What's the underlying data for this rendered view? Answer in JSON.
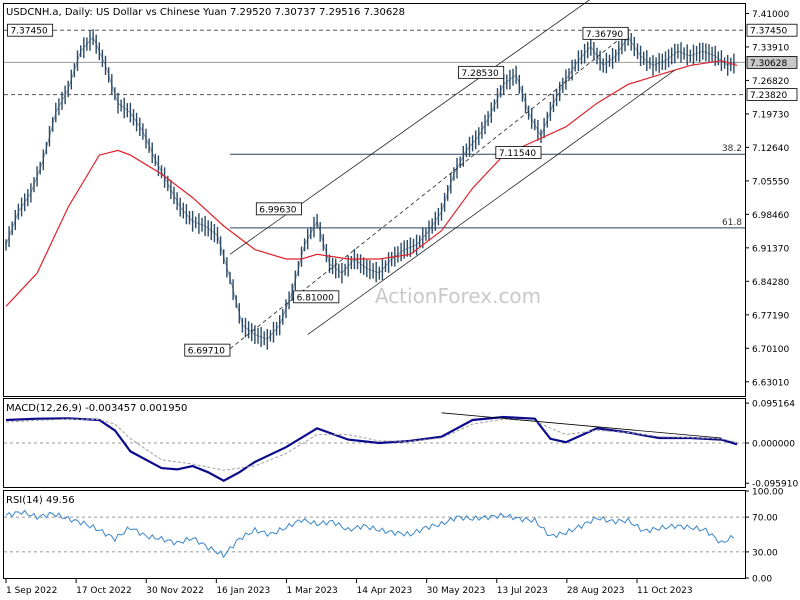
{
  "header": {
    "main_title": "USDCNH.a, Daily:  US Dollar vs Chinese Yuan  7.29520 7.30737 7.29516 7.30628",
    "macd_title": "MACD(12,26,9) -0.003457 0.001950",
    "rsi_title": "RSI(14) 49.56"
  },
  "watermark": "ActionForex.com",
  "colors": {
    "price": "#2b4a66",
    "ma": "#e0202a",
    "channel": "#222222",
    "macd_line": "#0a0a8c",
    "signal_line": "#a0a0a0",
    "rsi": "#3a86c8",
    "current_line": "#9a9a9a",
    "grid_dash": "#555555"
  },
  "chart_data": [
    {
      "type": "line",
      "name": "price-panel",
      "ylim": [
        6.6,
        7.43
      ],
      "y_ticks": [
        "7.41000",
        "7.33910",
        "7.26820",
        "7.19730",
        "7.12640",
        "7.05550",
        "6.98460",
        "6.91370",
        "6.84280",
        "6.77190",
        "6.70100",
        "6.63010"
      ],
      "x_ticks": [
        "1 Sep 2022",
        "17 Oct 2022",
        "30 Nov 2022",
        "16 Jan 2023",
        "1 Mar 2023",
        "14 Apr 2023",
        "30 May 2023",
        "13 Jul 2023",
        "28 Aug 2023",
        "11 Oct 2023"
      ],
      "price_levels": [
        {
          "label": "7.37450",
          "value": 7.3745,
          "style": "dashed"
        },
        {
          "label": "7.30628",
          "value": 7.30628,
          "style": "current"
        },
        {
          "label": "7.23820",
          "value": 7.2382,
          "style": "dashed"
        }
      ],
      "fib_levels": [
        {
          "label": "38.2",
          "value": 7.112
        },
        {
          "label": "61.8",
          "value": 6.956
        }
      ],
      "annotations": [
        {
          "label": "7.37450",
          "x": 15,
          "y": 7.3745
        },
        {
          "label": "6.69710",
          "x": 72,
          "y": 6.6971
        },
        {
          "label": "6.99630",
          "x": 95,
          "y": 6.9963
        },
        {
          "label": "6.81000",
          "x": 107,
          "y": 6.81
        },
        {
          "label": "7.28530",
          "x": 160,
          "y": 7.2853
        },
        {
          "label": "7.11540",
          "x": 172,
          "y": 7.1154
        },
        {
          "label": "7.36790",
          "x": 200,
          "y": 7.3679
        }
      ],
      "series": [
        {
          "name": "USDCNH",
          "x": [
            0,
            4,
            8,
            12,
            16,
            20,
            24,
            28,
            32,
            36,
            40,
            44,
            48,
            52,
            56,
            60,
            64,
            68,
            72,
            76,
            80,
            84,
            88,
            92,
            96,
            100,
            104,
            108,
            112,
            116,
            120,
            124,
            128,
            132,
            136,
            140,
            144,
            148,
            152,
            156,
            160,
            164,
            168,
            172,
            176,
            180,
            184,
            188,
            192,
            196,
            200,
            204,
            208,
            212,
            216,
            220,
            224,
            228,
            232,
            235
          ],
          "values": [
            6.92,
            6.99,
            7.03,
            7.1,
            7.2,
            7.25,
            7.33,
            7.36,
            7.3,
            7.22,
            7.2,
            7.16,
            7.1,
            7.05,
            7.0,
            6.97,
            6.96,
            6.94,
            6.85,
            6.75,
            6.73,
            6.72,
            6.75,
            6.82,
            6.92,
            6.97,
            6.88,
            6.86,
            6.89,
            6.87,
            6.86,
            6.89,
            6.91,
            6.92,
            6.95,
            6.99,
            7.07,
            7.12,
            7.15,
            7.2,
            7.26,
            7.28,
            7.2,
            7.15,
            7.22,
            7.27,
            7.31,
            7.34,
            7.3,
            7.32,
            7.36,
            7.32,
            7.3,
            7.31,
            7.33,
            7.32,
            7.33,
            7.32,
            7.3,
            7.306
          ]
        },
        {
          "name": "MA",
          "x": [
            0,
            10,
            20,
            30,
            36,
            40,
            50,
            60,
            70,
            80,
            90,
            95,
            100,
            110,
            120,
            130,
            140,
            150,
            160,
            170,
            180,
            190,
            200,
            210,
            220,
            230,
            235
          ],
          "values": [
            6.79,
            6.86,
            7.0,
            7.11,
            7.12,
            7.11,
            7.07,
            7.02,
            6.96,
            6.91,
            6.89,
            6.89,
            6.9,
            6.89,
            6.89,
            6.9,
            6.95,
            7.04,
            7.11,
            7.14,
            7.17,
            7.22,
            7.26,
            7.28,
            7.3,
            7.31,
            7.3
          ]
        },
        {
          "name": "channel-upper",
          "x": [
            72,
            190
          ],
          "values": [
            6.9,
            7.45
          ]
        },
        {
          "name": "channel-lower",
          "x": [
            97,
            215
          ],
          "values": [
            6.73,
            7.29
          ]
        },
        {
          "name": "channel-mid",
          "x": [
            72,
            200
          ],
          "values": [
            6.7,
            7.37
          ]
        }
      ]
    },
    {
      "type": "line",
      "name": "macd-panel",
      "ylim": [
        -0.105,
        0.105
      ],
      "y_ticks": [
        "0.095164",
        "0.000000",
        "-0.095910"
      ],
      "series": [
        {
          "name": "MACD",
          "x": [
            0,
            10,
            20,
            30,
            35,
            40,
            50,
            55,
            60,
            65,
            70,
            75,
            80,
            90,
            100,
            110,
            120,
            130,
            140,
            150,
            160,
            170,
            175,
            180,
            190,
            200,
            210,
            220,
            230,
            235
          ],
          "values": [
            0.055,
            0.058,
            0.059,
            0.055,
            0.03,
            -0.02,
            -0.06,
            -0.063,
            -0.055,
            -0.07,
            -0.09,
            -0.07,
            -0.045,
            -0.01,
            0.035,
            0.008,
            0.0,
            0.005,
            0.015,
            0.055,
            0.062,
            0.058,
            0.01,
            0.002,
            0.035,
            0.025,
            0.012,
            0.012,
            0.008,
            -0.003
          ]
        },
        {
          "name": "Signal",
          "x": [
            0,
            10,
            20,
            30,
            35,
            40,
            50,
            60,
            70,
            80,
            90,
            100,
            110,
            120,
            130,
            140,
            150,
            160,
            170,
            180,
            190,
            200,
            210,
            220,
            230,
            235
          ],
          "values": [
            0.05,
            0.054,
            0.057,
            0.056,
            0.045,
            0.01,
            -0.04,
            -0.05,
            -0.065,
            -0.055,
            -0.025,
            0.02,
            0.02,
            0.005,
            0.004,
            0.012,
            0.045,
            0.057,
            0.052,
            0.02,
            0.03,
            0.025,
            0.015,
            0.013,
            0.01,
            0.002
          ]
        },
        {
          "name": "divergence-line",
          "x": [
            140,
            230
          ],
          "values": [
            0.072,
            0.012
          ]
        }
      ]
    },
    {
      "type": "line",
      "name": "rsi-panel",
      "ylim": [
        0,
        100
      ],
      "y_ticks": [
        "100.00",
        "70.00",
        "30.00",
        "0.00"
      ],
      "levels": [
        70,
        30
      ],
      "series": [
        {
          "name": "RSI",
          "x": [
            0,
            5,
            10,
            15,
            20,
            25,
            30,
            35,
            40,
            45,
            50,
            55,
            60,
            65,
            70,
            75,
            80,
            85,
            90,
            95,
            100,
            105,
            110,
            115,
            120,
            125,
            130,
            135,
            140,
            145,
            150,
            155,
            160,
            165,
            170,
            175,
            180,
            185,
            190,
            195,
            200,
            205,
            210,
            215,
            220,
            225,
            230,
            235
          ],
          "values": [
            72,
            76,
            70,
            74,
            68,
            63,
            55,
            45,
            58,
            48,
            45,
            40,
            46,
            35,
            26,
            45,
            55,
            50,
            58,
            67,
            62,
            65,
            55,
            60,
            55,
            52,
            50,
            58,
            62,
            70,
            68,
            70,
            72,
            68,
            66,
            48,
            52,
            60,
            69,
            65,
            66,
            54,
            57,
            60,
            58,
            55,
            40,
            50
          ]
        }
      ]
    }
  ]
}
